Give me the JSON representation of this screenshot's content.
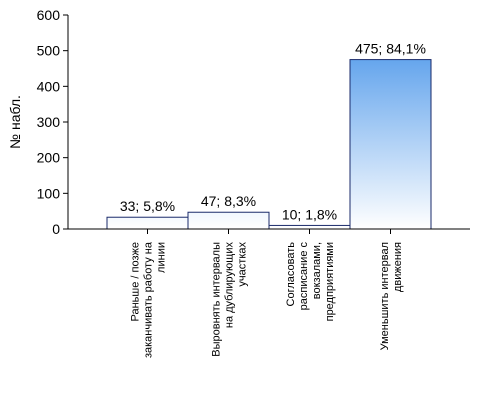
{
  "chart_data": {
    "type": "bar",
    "y_label": "№ набл.",
    "categories": [
      "Раньше / позже\nзаканчивать работу на\nлинии",
      "Выровнять интервалы\nна дублирующих\nучастках",
      "Согласовать\nрасписание с\nвокзалами,\nпредприятиями",
      "Уменьшить интервал\nдвижения"
    ],
    "values": [
      33,
      47,
      10,
      475
    ],
    "value_labels": [
      "33; 5,8%",
      "47; 8,3%",
      "10; 1,8%",
      "475; 84,1%"
    ],
    "color": "#3d8ee8",
    "ylim": [
      0,
      600
    ],
    "yticks": [
      0,
      100,
      200,
      300,
      400,
      500,
      600
    ]
  }
}
